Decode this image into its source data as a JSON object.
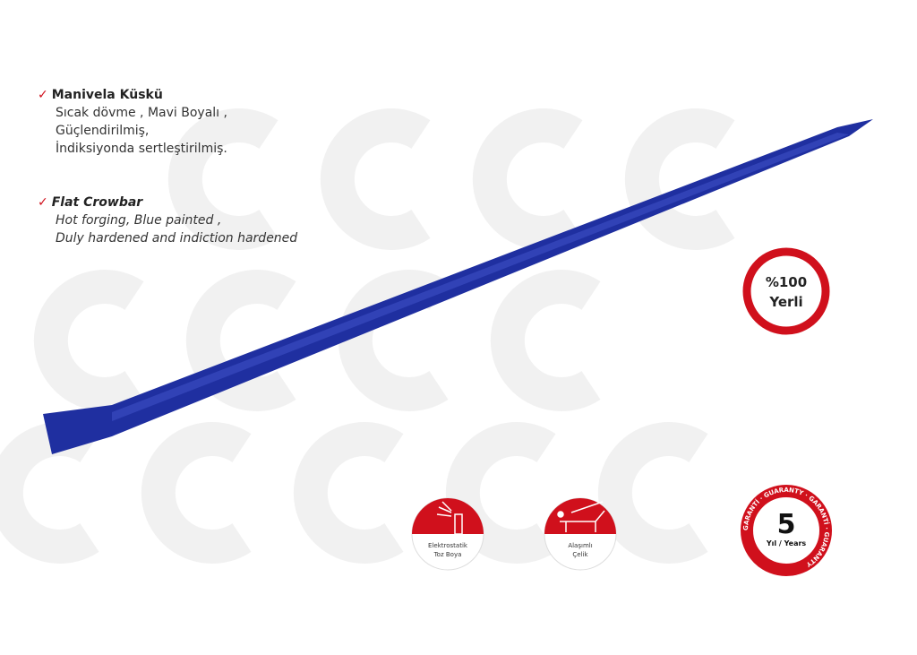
{
  "turkish": {
    "title": "Manivela Küskü",
    "lines": [
      "Sıcak dövme , Mavi Boyalı ,",
      "Güçlendirilmiş,",
      "İndiksiyonda sertleştirilmiş."
    ]
  },
  "english": {
    "title": "Flat Crowbar",
    "lines": [
      "Hot forging, Blue painted ,",
      "Duly hardened and indiction hardened"
    ]
  },
  "badges": {
    "local": {
      "line1": "%100",
      "line2": "Yerli"
    },
    "paint": {
      "line1": "Elektrostatik",
      "line2": "Toz Boya"
    },
    "steel": {
      "line1": "Alaşımlı",
      "line2": "Çelik"
    },
    "warranty": {
      "number": "5",
      "unit": "Yıl / Years",
      "ring": "GARANTİ · GUARANTY · GARANTİ · GUARANTY"
    }
  },
  "colors": {
    "brand_red": "#d0101c",
    "tool_blue": "#1f2fa0",
    "watermark": "#f0f0f0"
  },
  "icons": [
    "checkmark-icon",
    "spray-can-icon",
    "steel-beam-icon",
    "watermark-logo"
  ]
}
